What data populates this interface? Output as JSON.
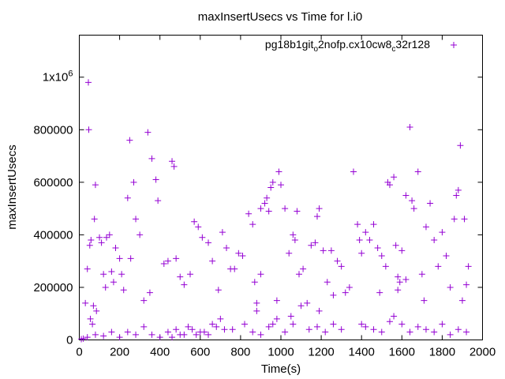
{
  "chart_data": {
    "type": "scatter",
    "title": "maxInsertUsecs vs Time for l.i0",
    "xlabel": "Time(s)",
    "ylabel": "maxInsertUsecs",
    "xlim": [
      0,
      2000
    ],
    "ylim": [
      0,
      1160000
    ],
    "grid": false,
    "legend_position": "top-right",
    "x_ticks": [
      0,
      200,
      400,
      600,
      800,
      1000,
      1200,
      1400,
      1600,
      1800,
      2000
    ],
    "x_tick_labels": [
      "0",
      "200",
      "400",
      "600",
      "800",
      "1000",
      "1200",
      "1400",
      "1600",
      "1800",
      "2000"
    ],
    "y_ticks": [
      0,
      200000,
      400000,
      600000,
      800000,
      1000000
    ],
    "y_tick_labels": [
      "0",
      "200000",
      "400000",
      "600000",
      "800000",
      "1x10^6"
    ],
    "marker_color": "#9400d3",
    "series": [
      {
        "name": "pg18b1git_o2nofp.cx10cw8_c32r128",
        "points": [
          [
            45,
            980000
          ],
          [
            47,
            800000
          ],
          [
            80,
            590000
          ],
          [
            75,
            460000
          ],
          [
            58,
            380000
          ],
          [
            52,
            360000
          ],
          [
            40,
            270000
          ],
          [
            30,
            140000
          ],
          [
            55,
            80000
          ],
          [
            65,
            60000
          ],
          [
            70,
            130000
          ],
          [
            85,
            110000
          ],
          [
            100,
            390000
          ],
          [
            110,
            370000
          ],
          [
            120,
            250000
          ],
          [
            130,
            200000
          ],
          [
            135,
            390000
          ],
          [
            150,
            400000
          ],
          [
            160,
            260000
          ],
          [
            170,
            220000
          ],
          [
            180,
            350000
          ],
          [
            200,
            310000
          ],
          [
            210,
            250000
          ],
          [
            220,
            190000
          ],
          [
            240,
            540000
          ],
          [
            250,
            760000
          ],
          [
            255,
            310000
          ],
          [
            270,
            600000
          ],
          [
            280,
            460000
          ],
          [
            300,
            400000
          ],
          [
            340,
            790000
          ],
          [
            360,
            690000
          ],
          [
            380,
            610000
          ],
          [
            390,
            530000
          ],
          [
            350,
            180000
          ],
          [
            320,
            150000
          ],
          [
            420,
            290000
          ],
          [
            440,
            300000
          ],
          [
            460,
            680000
          ],
          [
            470,
            660000
          ],
          [
            480,
            310000
          ],
          [
            500,
            240000
          ],
          [
            520,
            210000
          ],
          [
            550,
            250000
          ],
          [
            570,
            450000
          ],
          [
            590,
            430000
          ],
          [
            610,
            390000
          ],
          [
            640,
            370000
          ],
          [
            660,
            300000
          ],
          [
            690,
            190000
          ],
          [
            710,
            410000
          ],
          [
            730,
            350000
          ],
          [
            750,
            270000
          ],
          [
            770,
            270000
          ],
          [
            790,
            330000
          ],
          [
            810,
            320000
          ],
          [
            840,
            480000
          ],
          [
            860,
            440000
          ],
          [
            870,
            220000
          ],
          [
            880,
            110000
          ],
          [
            900,
            500000
          ],
          [
            920,
            520000
          ],
          [
            930,
            540000
          ],
          [
            940,
            490000
          ],
          [
            950,
            580000
          ],
          [
            960,
            600000
          ],
          [
            980,
            150000
          ],
          [
            990,
            640000
          ],
          [
            1000,
            590000
          ],
          [
            1020,
            500000
          ],
          [
            1040,
            330000
          ],
          [
            1060,
            400000
          ],
          [
            1070,
            380000
          ],
          [
            1080,
            490000
          ],
          [
            1090,
            250000
          ],
          [
            1110,
            270000
          ],
          [
            1130,
            140000
          ],
          [
            1150,
            360000
          ],
          [
            1170,
            370000
          ],
          [
            1180,
            470000
          ],
          [
            1190,
            500000
          ],
          [
            1210,
            340000
          ],
          [
            1230,
            220000
          ],
          [
            1250,
            340000
          ],
          [
            1260,
            170000
          ],
          [
            1280,
            300000
          ],
          [
            1300,
            280000
          ],
          [
            1320,
            180000
          ],
          [
            1340,
            200000
          ],
          [
            1360,
            640000
          ],
          [
            1380,
            440000
          ],
          [
            1390,
            380000
          ],
          [
            1400,
            330000
          ],
          [
            1420,
            410000
          ],
          [
            1440,
            380000
          ],
          [
            1460,
            440000
          ],
          [
            1480,
            350000
          ],
          [
            1500,
            320000
          ],
          [
            1520,
            280000
          ],
          [
            1530,
            600000
          ],
          [
            1540,
            590000
          ],
          [
            1560,
            620000
          ],
          [
            1570,
            360000
          ],
          [
            1580,
            240000
          ],
          [
            1590,
            220000
          ],
          [
            1600,
            340000
          ],
          [
            1620,
            550000
          ],
          [
            1640,
            810000
          ],
          [
            1650,
            530000
          ],
          [
            1660,
            500000
          ],
          [
            1680,
            640000
          ],
          [
            1700,
            250000
          ],
          [
            1720,
            430000
          ],
          [
            1740,
            520000
          ],
          [
            1760,
            380000
          ],
          [
            1780,
            280000
          ],
          [
            1800,
            410000
          ],
          [
            1820,
            320000
          ],
          [
            1840,
            200000
          ],
          [
            1860,
            460000
          ],
          [
            1870,
            550000
          ],
          [
            1880,
            570000
          ],
          [
            1890,
            740000
          ],
          [
            1900,
            150000
          ],
          [
            1910,
            460000
          ],
          [
            1920,
            210000
          ],
          [
            1930,
            280000
          ],
          [
            1620,
            230000
          ],
          [
            1580,
            190000
          ],
          [
            1490,
            180000
          ],
          [
            1710,
            150000
          ],
          [
            1190,
            110000
          ],
          [
            1100,
            130000
          ],
          [
            1050,
            90000
          ],
          [
            980,
            80000
          ],
          [
            960,
            60000
          ],
          [
            900,
            250000
          ],
          [
            880,
            140000
          ],
          [
            860,
            30000
          ],
          [
            820,
            60000
          ],
          [
            760,
            40000
          ],
          [
            720,
            40000
          ],
          [
            680,
            50000
          ],
          [
            640,
            20000
          ],
          [
            600,
            30000
          ],
          [
            560,
            40000
          ],
          [
            520,
            20000
          ],
          [
            480,
            40000
          ],
          [
            440,
            30000
          ],
          [
            400,
            10000
          ],
          [
            360,
            20000
          ],
          [
            320,
            50000
          ],
          [
            280,
            20000
          ],
          [
            240,
            30000
          ],
          [
            200,
            10000
          ],
          [
            160,
            30000
          ],
          [
            120,
            15000
          ],
          [
            80,
            20000
          ],
          [
            40,
            10000
          ],
          [
            20,
            5000
          ],
          [
            10,
            3000
          ],
          [
            1400,
            60000
          ],
          [
            1420,
            50000
          ],
          [
            1460,
            40000
          ],
          [
            1500,
            30000
          ],
          [
            1540,
            70000
          ],
          [
            1560,
            90000
          ],
          [
            1600,
            60000
          ],
          [
            1640,
            30000
          ],
          [
            1680,
            50000
          ],
          [
            1720,
            40000
          ],
          [
            1760,
            30000
          ],
          [
            1800,
            60000
          ],
          [
            1840,
            20000
          ],
          [
            1880,
            40000
          ],
          [
            1920,
            30000
          ],
          [
            1300,
            40000
          ],
          [
            1260,
            60000
          ],
          [
            1220,
            30000
          ],
          [
            1180,
            50000
          ],
          [
            1140,
            40000
          ],
          [
            1060,
            60000
          ],
          [
            1020,
            30000
          ],
          [
            940,
            50000
          ],
          [
            900,
            20000
          ],
          [
            700,
            80000
          ],
          [
            660,
            60000
          ],
          [
            620,
            30000
          ],
          [
            580,
            20000
          ],
          [
            540,
            50000
          ],
          [
            500,
            20000
          ],
          [
            460,
            10000
          ]
        ]
      }
    ]
  }
}
